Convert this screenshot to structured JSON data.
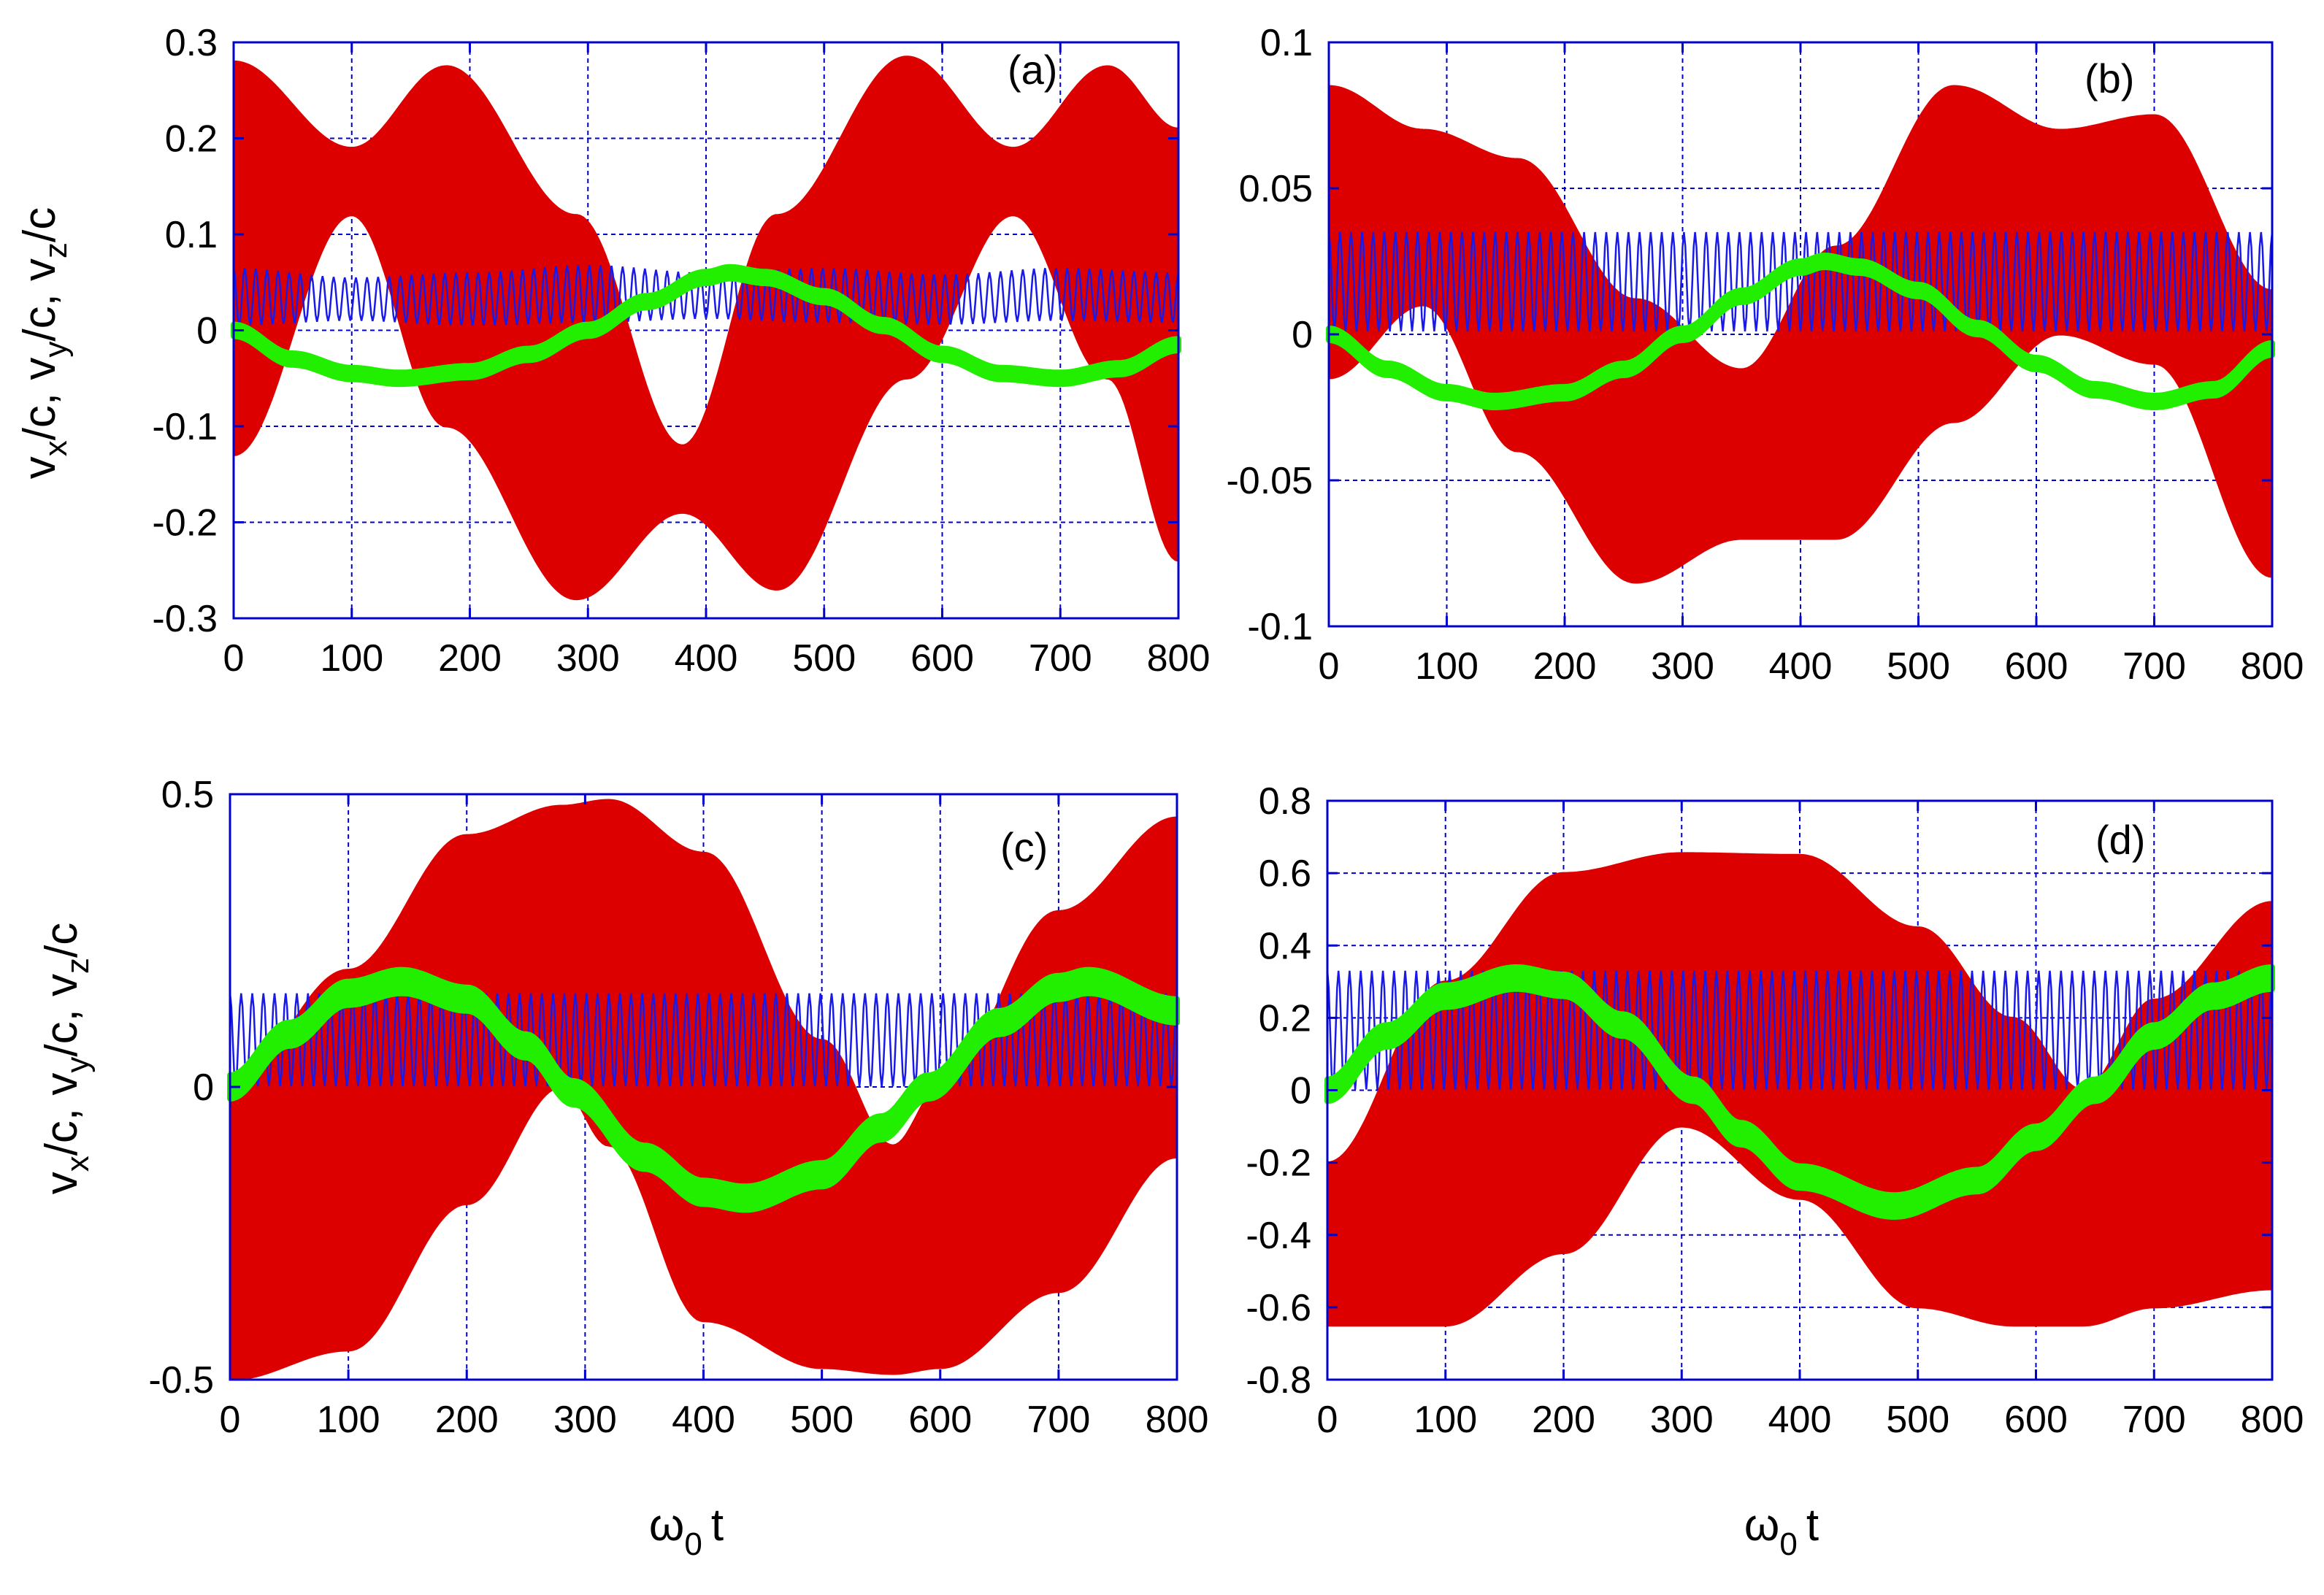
{
  "figure": {
    "ylabel": {
      "v": "v",
      "x": "x",
      "y": "y",
      "z": "z",
      "unit": "/c",
      "sep": ", "
    },
    "xlabel": {
      "omega": "ω",
      "sub": "0",
      "t": "t"
    }
  },
  "colors": {
    "vx": "#dd0000",
    "vy": "#1a1ae6",
    "vz": "#22ee00",
    "frame": "#0000cc",
    "grid": "#0000cc"
  },
  "chart_data": [
    {
      "type": "line",
      "panel": "(a)",
      "xlim": [
        0,
        800
      ],
      "ylim": [
        -0.3,
        0.3
      ],
      "xticks": [
        "0",
        "100",
        "200",
        "300",
        "400",
        "500",
        "600",
        "700",
        "800"
      ],
      "yticks": [
        "-0.3",
        "-0.2",
        "-0.1",
        "0",
        "0.1",
        "0.2",
        "0.3"
      ],
      "ytick_values": [
        -0.3,
        -0.2,
        -0.1,
        0,
        0.1,
        0.2,
        0.3
      ],
      "series": [
        {
          "name": "v_x/c",
          "kind": "envelope",
          "x": [
            0,
            100,
            180,
            290,
            380,
            460,
            570,
            660,
            740,
            800
          ],
          "upper": [
            0.28,
            0.19,
            0.275,
            0.12,
            -0.12,
            0.12,
            0.285,
            0.19,
            0.275,
            0.21
          ],
          "lower": [
            -0.13,
            0.12,
            -0.1,
            -0.28,
            -0.19,
            -0.27,
            -0.05,
            0.12,
            -0.05,
            -0.24
          ]
        },
        {
          "name": "v_y/c",
          "kind": "envelope",
          "x": [
            0,
            100,
            200,
            300,
            400,
            500,
            600,
            700,
            800
          ],
          "upper": [
            0.065,
            0.055,
            0.06,
            0.068,
            0.06,
            0.065,
            0.058,
            0.065,
            0.06
          ],
          "lower": [
            0.005,
            0.01,
            0.005,
            0.008,
            0.012,
            0.008,
            0.006,
            0.01,
            0.008
          ]
        },
        {
          "name": "v_z/c",
          "kind": "line",
          "x": [
            0,
            50,
            100,
            140,
            200,
            250,
            300,
            350,
            400,
            420,
            450,
            500,
            550,
            600,
            650,
            700,
            750,
            800
          ],
          "y": [
            0,
            -0.03,
            -0.045,
            -0.05,
            -0.043,
            -0.025,
            0,
            0.03,
            0.055,
            0.06,
            0.055,
            0.035,
            0.005,
            -0.025,
            -0.045,
            -0.05,
            -0.04,
            -0.015
          ],
          "thickness": 0.012
        }
      ]
    },
    {
      "type": "line",
      "panel": "(b)",
      "xlim": [
        0,
        800
      ],
      "ylim": [
        -0.1,
        0.1
      ],
      "xticks": [
        "0",
        "100",
        "200",
        "300",
        "400",
        "500",
        "600",
        "700",
        "800"
      ],
      "yticks": [
        "-0.1",
        "-0.05",
        "0",
        "0.05",
        "0.1"
      ],
      "ytick_values": [
        -0.1,
        -0.05,
        0,
        0.05,
        0.1
      ],
      "series": [
        {
          "name": "v_x/c",
          "kind": "envelope",
          "x": [
            0,
            80,
            160,
            260,
            350,
            430,
            530,
            620,
            700,
            800
          ],
          "upper": [
            0.085,
            0.07,
            0.06,
            0.012,
            -0.012,
            0.03,
            0.085,
            0.07,
            0.075,
            0.015
          ],
          "lower": [
            -0.015,
            0.01,
            -0.04,
            -0.085,
            -0.07,
            -0.07,
            -0.03,
            0.0,
            -0.01,
            -0.083
          ]
        },
        {
          "name": "v_y/c",
          "kind": "envelope",
          "x": [
            0,
            100,
            200,
            300,
            400,
            500,
            600,
            700,
            800
          ],
          "upper": [
            0.035,
            0.035,
            0.035,
            0.035,
            0.035,
            0.035,
            0.035,
            0.035,
            0.035
          ],
          "lower": [
            0.001,
            0.001,
            0.001,
            0.001,
            0.001,
            0.001,
            0.001,
            0.001,
            0.001
          ]
        },
        {
          "name": "v_z/c",
          "kind": "line",
          "x": [
            0,
            50,
            100,
            140,
            200,
            250,
            300,
            350,
            400,
            420,
            450,
            500,
            550,
            600,
            650,
            700,
            750,
            800
          ],
          "y": [
            0,
            -0.012,
            -0.02,
            -0.023,
            -0.02,
            -0.012,
            0,
            0.013,
            0.023,
            0.025,
            0.023,
            0.015,
            0.002,
            -0.01,
            -0.019,
            -0.023,
            -0.019,
            -0.005
          ],
          "thickness": 0.004
        }
      ]
    },
    {
      "type": "line",
      "panel": "(c)",
      "xlim": [
        0,
        800
      ],
      "ylim": [
        -0.5,
        0.5
      ],
      "xticks": [
        "0",
        "100",
        "200",
        "300",
        "400",
        "500",
        "600",
        "700",
        "800"
      ],
      "yticks": [
        "-0.5",
        "0",
        "0.5"
      ],
      "ytick_values": [
        -0.5,
        0,
        0.5
      ],
      "series": [
        {
          "name": "v_x/c",
          "kind": "envelope",
          "x": [
            0,
            100,
            200,
            280,
            320,
            400,
            500,
            560,
            600,
            700,
            800
          ],
          "upper": [
            0.0,
            0.2,
            0.43,
            0.48,
            0.49,
            0.4,
            0.08,
            -0.1,
            0.0,
            0.3,
            0.46
          ],
          "lower": [
            -0.5,
            -0.45,
            -0.2,
            0.0,
            -0.1,
            -0.4,
            -0.48,
            -0.49,
            -0.48,
            -0.35,
            -0.12
          ]
        },
        {
          "name": "v_y/c",
          "kind": "envelope",
          "x": [
            0,
            100,
            200,
            300,
            400,
            500,
            600,
            700,
            800
          ],
          "upper": [
            0.16,
            0.16,
            0.16,
            0.16,
            0.16,
            0.16,
            0.16,
            0.16,
            0.16
          ],
          "lower": [
            0.001,
            0.001,
            0.001,
            0.001,
            0.001,
            0.001,
            0.001,
            0.001,
            0.001
          ]
        },
        {
          "name": "v_z/c",
          "kind": "line",
          "x": [
            0,
            50,
            100,
            145,
            200,
            250,
            290,
            350,
            400,
            435,
            500,
            550,
            590,
            650,
            700,
            725,
            800
          ],
          "y": [
            0,
            0.09,
            0.16,
            0.18,
            0.15,
            0.07,
            -0.01,
            -0.12,
            -0.18,
            -0.19,
            -0.15,
            -0.07,
            0.0,
            0.11,
            0.17,
            0.18,
            0.13
          ],
          "thickness": 0.04
        }
      ]
    },
    {
      "type": "line",
      "panel": "(d)",
      "xlim": [
        0,
        800
      ],
      "ylim": [
        -0.8,
        0.8
      ],
      "xticks": [
        "0",
        "100",
        "200",
        "300",
        "400",
        "500",
        "600",
        "700",
        "800"
      ],
      "yticks": [
        "-0.8",
        "-0.6",
        "-0.4",
        "-0.2",
        "0",
        "0.2",
        "0.4",
        "0.6",
        "0.8"
      ],
      "ytick_values": [
        -0.8,
        -0.6,
        -0.4,
        -0.2,
        0,
        0.2,
        0.4,
        0.6,
        0.8
      ],
      "series": [
        {
          "name": "v_x/c",
          "kind": "envelope",
          "x": [
            0,
            100,
            200,
            300,
            400,
            500,
            580,
            640,
            700,
            800
          ],
          "upper": [
            -0.2,
            0.3,
            0.6,
            0.655,
            0.65,
            0.45,
            0.2,
            0.0,
            0.25,
            0.52
          ],
          "lower": [
            -0.65,
            -0.65,
            -0.45,
            -0.1,
            -0.3,
            -0.6,
            -0.65,
            -0.65,
            -0.6,
            -0.55
          ]
        },
        {
          "name": "v_y/c",
          "kind": "envelope",
          "x": [
            0,
            100,
            200,
            300,
            400,
            500,
            600,
            700,
            800
          ],
          "upper": [
            0.33,
            0.33,
            0.33,
            0.33,
            0.33,
            0.33,
            0.33,
            0.33,
            0.33
          ],
          "lower": [
            0.002,
            0.002,
            0.002,
            0.002,
            0.002,
            0.002,
            0.002,
            0.002,
            0.002
          ]
        },
        {
          "name": "v_z/c",
          "kind": "line",
          "x": [
            0,
            50,
            100,
            160,
            200,
            250,
            310,
            350,
            400,
            480,
            550,
            600,
            650,
            700,
            750,
            800
          ],
          "y": [
            0,
            0.15,
            0.26,
            0.31,
            0.29,
            0.18,
            0.0,
            -0.12,
            -0.24,
            -0.32,
            -0.25,
            -0.13,
            0.0,
            0.15,
            0.26,
            0.31
          ],
          "thickness": 0.06
        }
      ]
    }
  ]
}
